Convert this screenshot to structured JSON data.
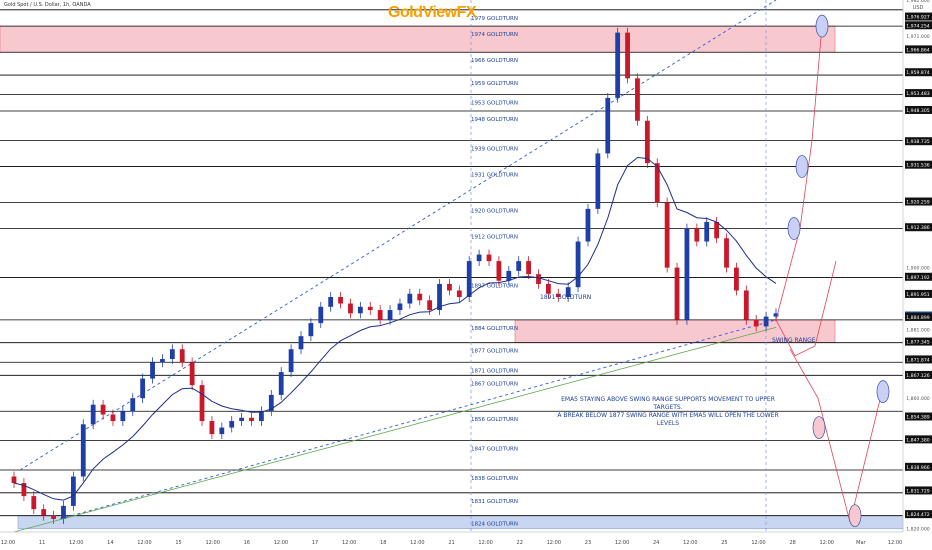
{
  "header": {
    "symbol_line": "Gold Spot / U.S. Dollar, 1h, OANDA",
    "brand": "GoldViewFX",
    "currency": "USD"
  },
  "chart_data": {
    "type": "candlestick",
    "price_range": [
      1819,
      1982
    ],
    "gold_turns": [
      1979,
      1974,
      1966,
      1959,
      1953,
      1948,
      1939,
      1931,
      1920,
      1912,
      1897,
      1884,
      1877,
      1871,
      1867,
      1856,
      1847,
      1838,
      1831,
      1824
    ],
    "gold_turn_suffix": " GOLDTURN",
    "inline_label": "1891 GOLDTURN",
    "axis_prices": [
      "1,982.000",
      "1,976.927",
      "1,974.254",
      "1,971.000",
      "1,966.864",
      "1,959.874",
      "1,953.483",
      "1,948.305",
      "1,938.735",
      "1,931.536",
      "1,920.259",
      "1,912.386",
      "1,900.000",
      "1,897.192",
      "1,891.951",
      "1,885.324",
      "1,884.899",
      "1,881.000",
      "1,877.345",
      "1,871.874",
      "1,867.126",
      "1,860.000",
      "1,854.389",
      "1,847.380",
      "1,838.966",
      "1,831.729",
      "1,824.472",
      "1,820.000"
    ],
    "current_price": "1,885.324",
    "x_ticks": [
      "12:00",
      "11",
      "12:00",
      "14",
      "12:00",
      "15",
      "12:00",
      "16",
      "12:00",
      "17",
      "12:00",
      "18",
      "12:00",
      "21",
      "12:00",
      "22",
      "12:00",
      "23",
      "12:00",
      "24",
      "12:00",
      "25",
      "12:00",
      "28",
      "12:00",
      "Mar",
      "12:00"
    ],
    "zones": [
      {
        "name": "Top zone",
        "from": 1966,
        "to": 1974,
        "color": "#f7c9cf"
      },
      {
        "name": "Swing range",
        "from": 1877,
        "to": 1884,
        "color": "#f7c9cf"
      },
      {
        "name": "Bottom zone",
        "from": 1820,
        "to": 1824,
        "color": "#c9d6f2"
      }
    ],
    "swing_label": "SWING RANGE",
    "annotation_line1": "EMA5 STAYING ABOVE SWING RANGE SUPPORTS MOVEMENT TO UPPER TARGETS.",
    "annotation_line2": "A BREAK BELOW 1877 SWING RANGE WITH EMA5 WILL OPEN THE LOWER LEVELS",
    "candles_close": [
      1834,
      1830,
      1826,
      1824,
      1823,
      1827,
      1836,
      1852,
      1858,
      1855,
      1853,
      1856,
      1860,
      1866,
      1871,
      1872,
      1875,
      1871,
      1864,
      1853,
      1849,
      1851,
      1853,
      1854,
      1853,
      1856,
      1861,
      1868,
      1875,
      1879,
      1883,
      1888,
      1891,
      1889,
      1886,
      1888,
      1887,
      1884,
      1887,
      1889,
      1892,
      1890,
      1887,
      1895,
      1893,
      1891,
      1902,
      1904,
      1902,
      1896,
      1899,
      1902,
      1898,
      1895,
      1892,
      1891,
      1894,
      1908,
      1918,
      1935,
      1952,
      1972,
      1958,
      1945,
      1932,
      1920,
      1900,
      1884,
      1912,
      1908,
      1914,
      1909,
      1900,
      1893,
      1884,
      1882,
      1885,
      1886
    ],
    "colors": {
      "up": "#1f3fa8",
      "down": "#c8182a",
      "ema_slow": "#1c2f8a",
      "ema_long": "#5aa84a",
      "trend": "#2f5ad6",
      "fib_line": "#000000",
      "target": "#e0445a"
    }
  }
}
